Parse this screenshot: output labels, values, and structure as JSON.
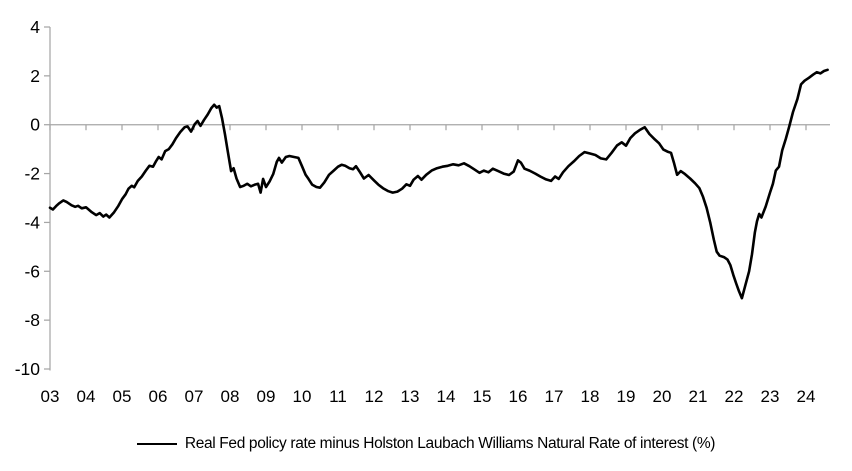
{
  "chart_data": {
    "type": "line",
    "title": "",
    "xlabel": "",
    "ylabel": "",
    "legend_label": "Real Fed policy rate minus Holston Laubach Williams Natural Rate of interest (%)",
    "legend_position": "bottom-center",
    "grid": "zero-line-only",
    "line_color": "#000000",
    "axis_color": "#a6a6a6",
    "label_color": "#000000",
    "ylim": [
      -10,
      4
    ],
    "xlim": [
      2003,
      2024.7
    ],
    "y_ticks": [
      4,
      2,
      0,
      -2,
      -4,
      -6,
      -8,
      -10
    ],
    "x_tick_years": [
      2003,
      2004,
      2005,
      2006,
      2007,
      2008,
      2009,
      2010,
      2011,
      2012,
      2013,
      2014,
      2015,
      2016,
      2017,
      2018,
      2019,
      2020,
      2021,
      2022,
      2023,
      2024
    ],
    "x_tick_labels": [
      "03",
      "04",
      "05",
      "06",
      "07",
      "08",
      "09",
      "10",
      "11",
      "12",
      "13",
      "14",
      "15",
      "16",
      "17",
      "18",
      "19",
      "20",
      "21",
      "22",
      "23",
      "24"
    ],
    "series": [
      {
        "name": "Real Fed policy rate minus Holston Laubach Williams Natural Rate of interest (%)",
        "points": [
          [
            2003.0,
            -3.4
          ],
          [
            2003.08,
            -3.47
          ],
          [
            2003.17,
            -3.33
          ],
          [
            2003.25,
            -3.22
          ],
          [
            2003.37,
            -3.1
          ],
          [
            2003.46,
            -3.16
          ],
          [
            2003.6,
            -3.3
          ],
          [
            2003.7,
            -3.36
          ],
          [
            2003.78,
            -3.32
          ],
          [
            2003.88,
            -3.42
          ],
          [
            2004.0,
            -3.38
          ],
          [
            2004.16,
            -3.58
          ],
          [
            2004.28,
            -3.7
          ],
          [
            2004.38,
            -3.62
          ],
          [
            2004.48,
            -3.76
          ],
          [
            2004.56,
            -3.68
          ],
          [
            2004.65,
            -3.8
          ],
          [
            2004.78,
            -3.58
          ],
          [
            2004.9,
            -3.32
          ],
          [
            2005.0,
            -3.05
          ],
          [
            2005.1,
            -2.85
          ],
          [
            2005.18,
            -2.62
          ],
          [
            2005.27,
            -2.5
          ],
          [
            2005.34,
            -2.56
          ],
          [
            2005.44,
            -2.3
          ],
          [
            2005.55,
            -2.12
          ],
          [
            2005.66,
            -1.88
          ],
          [
            2005.76,
            -1.68
          ],
          [
            2005.86,
            -1.72
          ],
          [
            2005.95,
            -1.48
          ],
          [
            2006.02,
            -1.32
          ],
          [
            2006.1,
            -1.42
          ],
          [
            2006.2,
            -1.08
          ],
          [
            2006.3,
            -1.0
          ],
          [
            2006.4,
            -0.8
          ],
          [
            2006.5,
            -0.55
          ],
          [
            2006.62,
            -0.3
          ],
          [
            2006.74,
            -0.1
          ],
          [
            2006.82,
            -0.07
          ],
          [
            2006.92,
            -0.28
          ],
          [
            2007.02,
            0.02
          ],
          [
            2007.1,
            0.15
          ],
          [
            2007.18,
            -0.05
          ],
          [
            2007.28,
            0.2
          ],
          [
            2007.38,
            0.42
          ],
          [
            2007.48,
            0.68
          ],
          [
            2007.56,
            0.82
          ],
          [
            2007.63,
            0.7
          ],
          [
            2007.7,
            0.76
          ],
          [
            2007.78,
            0.25
          ],
          [
            2007.86,
            -0.4
          ],
          [
            2007.94,
            -1.1
          ],
          [
            2008.03,
            -1.9
          ],
          [
            2008.1,
            -1.78
          ],
          [
            2008.18,
            -2.2
          ],
          [
            2008.28,
            -2.55
          ],
          [
            2008.38,
            -2.5
          ],
          [
            2008.48,
            -2.42
          ],
          [
            2008.58,
            -2.52
          ],
          [
            2008.68,
            -2.46
          ],
          [
            2008.78,
            -2.42
          ],
          [
            2008.85,
            -2.78
          ],
          [
            2008.92,
            -2.22
          ],
          [
            2009.0,
            -2.55
          ],
          [
            2009.1,
            -2.32
          ],
          [
            2009.2,
            -2.02
          ],
          [
            2009.3,
            -1.52
          ],
          [
            2009.36,
            -1.36
          ],
          [
            2009.44,
            -1.55
          ],
          [
            2009.55,
            -1.32
          ],
          [
            2009.65,
            -1.28
          ],
          [
            2009.78,
            -1.32
          ],
          [
            2009.9,
            -1.36
          ],
          [
            2010.0,
            -1.7
          ],
          [
            2010.1,
            -2.05
          ],
          [
            2010.18,
            -2.22
          ],
          [
            2010.28,
            -2.45
          ],
          [
            2010.4,
            -2.55
          ],
          [
            2010.5,
            -2.58
          ],
          [
            2010.62,
            -2.36
          ],
          [
            2010.75,
            -2.05
          ],
          [
            2010.88,
            -1.88
          ],
          [
            2011.0,
            -1.72
          ],
          [
            2011.1,
            -1.64
          ],
          [
            2011.2,
            -1.68
          ],
          [
            2011.32,
            -1.78
          ],
          [
            2011.42,
            -1.82
          ],
          [
            2011.5,
            -1.7
          ],
          [
            2011.6,
            -1.92
          ],
          [
            2011.72,
            -2.2
          ],
          [
            2011.85,
            -2.06
          ],
          [
            2012.0,
            -2.28
          ],
          [
            2012.12,
            -2.45
          ],
          [
            2012.25,
            -2.6
          ],
          [
            2012.4,
            -2.72
          ],
          [
            2012.52,
            -2.78
          ],
          [
            2012.65,
            -2.74
          ],
          [
            2012.78,
            -2.62
          ],
          [
            2012.9,
            -2.44
          ],
          [
            2013.0,
            -2.5
          ],
          [
            2013.1,
            -2.25
          ],
          [
            2013.22,
            -2.1
          ],
          [
            2013.32,
            -2.25
          ],
          [
            2013.45,
            -2.05
          ],
          [
            2013.6,
            -1.88
          ],
          [
            2013.75,
            -1.78
          ],
          [
            2013.9,
            -1.72
          ],
          [
            2014.05,
            -1.68
          ],
          [
            2014.2,
            -1.62
          ],
          [
            2014.35,
            -1.66
          ],
          [
            2014.5,
            -1.58
          ],
          [
            2014.65,
            -1.7
          ],
          [
            2014.8,
            -1.84
          ],
          [
            2014.93,
            -1.97
          ],
          [
            2015.05,
            -1.88
          ],
          [
            2015.18,
            -1.95
          ],
          [
            2015.3,
            -1.8
          ],
          [
            2015.45,
            -1.9
          ],
          [
            2015.6,
            -2.0
          ],
          [
            2015.75,
            -2.06
          ],
          [
            2015.88,
            -1.92
          ],
          [
            2016.0,
            -1.46
          ],
          [
            2016.08,
            -1.55
          ],
          [
            2016.18,
            -1.8
          ],
          [
            2016.32,
            -1.88
          ],
          [
            2016.48,
            -2.0
          ],
          [
            2016.62,
            -2.12
          ],
          [
            2016.78,
            -2.24
          ],
          [
            2016.92,
            -2.3
          ],
          [
            2017.03,
            -2.12
          ],
          [
            2017.13,
            -2.22
          ],
          [
            2017.25,
            -1.95
          ],
          [
            2017.4,
            -1.7
          ],
          [
            2017.55,
            -1.5
          ],
          [
            2017.7,
            -1.28
          ],
          [
            2017.85,
            -1.12
          ],
          [
            2018.0,
            -1.18
          ],
          [
            2018.15,
            -1.24
          ],
          [
            2018.3,
            -1.38
          ],
          [
            2018.45,
            -1.42
          ],
          [
            2018.6,
            -1.15
          ],
          [
            2018.75,
            -0.85
          ],
          [
            2018.88,
            -0.72
          ],
          [
            2019.0,
            -0.86
          ],
          [
            2019.12,
            -0.55
          ],
          [
            2019.25,
            -0.35
          ],
          [
            2019.4,
            -0.2
          ],
          [
            2019.52,
            -0.1
          ],
          [
            2019.65,
            -0.38
          ],
          [
            2019.8,
            -0.6
          ],
          [
            2019.92,
            -0.76
          ],
          [
            2020.04,
            -1.02
          ],
          [
            2020.15,
            -1.1
          ],
          [
            2020.25,
            -1.15
          ],
          [
            2020.33,
            -1.55
          ],
          [
            2020.42,
            -2.05
          ],
          [
            2020.52,
            -1.9
          ],
          [
            2020.64,
            -2.02
          ],
          [
            2020.78,
            -2.2
          ],
          [
            2020.92,
            -2.4
          ],
          [
            2021.04,
            -2.6
          ],
          [
            2021.14,
            -2.95
          ],
          [
            2021.24,
            -3.4
          ],
          [
            2021.34,
            -4.0
          ],
          [
            2021.44,
            -4.7
          ],
          [
            2021.52,
            -5.2
          ],
          [
            2021.6,
            -5.36
          ],
          [
            2021.72,
            -5.42
          ],
          [
            2021.82,
            -5.52
          ],
          [
            2021.9,
            -5.75
          ],
          [
            2021.98,
            -6.15
          ],
          [
            2022.06,
            -6.5
          ],
          [
            2022.14,
            -6.82
          ],
          [
            2022.22,
            -7.1
          ],
          [
            2022.32,
            -6.55
          ],
          [
            2022.42,
            -6.0
          ],
          [
            2022.5,
            -5.3
          ],
          [
            2022.58,
            -4.4
          ],
          [
            2022.64,
            -3.95
          ],
          [
            2022.7,
            -3.65
          ],
          [
            2022.76,
            -3.8
          ],
          [
            2022.88,
            -3.35
          ],
          [
            2023.0,
            -2.78
          ],
          [
            2023.08,
            -2.42
          ],
          [
            2023.16,
            -1.88
          ],
          [
            2023.25,
            -1.72
          ],
          [
            2023.34,
            -1.05
          ],
          [
            2023.44,
            -0.58
          ],
          [
            2023.54,
            -0.05
          ],
          [
            2023.64,
            0.52
          ],
          [
            2023.76,
            1.05
          ],
          [
            2023.86,
            1.65
          ],
          [
            2023.96,
            1.8
          ],
          [
            2024.08,
            1.92
          ],
          [
            2024.2,
            2.05
          ],
          [
            2024.3,
            2.15
          ],
          [
            2024.4,
            2.1
          ],
          [
            2024.5,
            2.2
          ],
          [
            2024.6,
            2.25
          ]
        ]
      }
    ]
  }
}
